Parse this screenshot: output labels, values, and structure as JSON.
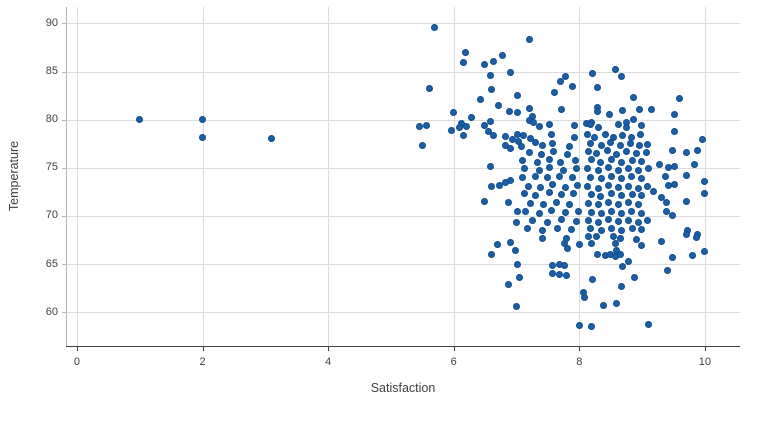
{
  "chart_data": {
    "type": "scatter",
    "title": "",
    "xlabel": "Satisfaction",
    "ylabel": "Temperature",
    "xlim": [
      -0.175,
      10.56
    ],
    "ylim": [
      56.5,
      91.7
    ],
    "x_ticks": [
      0,
      2,
      4,
      6,
      8,
      10
    ],
    "y_ticks": [
      60,
      65,
      70,
      75,
      80,
      85,
      90
    ],
    "grid": true,
    "legend": "none",
    "marker_color": "#1d5fa6",
    "marker_edge_color": "#0f4c8c",
    "gridline_color": "#dcdcdc",
    "x_axis_line_color": "#3f3f3f",
    "y_axis_line_color": "#b5b5b5",
    "tick_label_color": "#404040",
    "axis_title_color": "#404040",
    "background_color": "#ffffff",
    "points": [
      [
        1.0,
        80.0
      ],
      [
        2.0,
        80.0
      ],
      [
        2.0,
        78.1
      ],
      [
        3.1,
        78.0
      ],
      [
        5.69,
        89.6
      ],
      [
        6.18,
        87.0
      ],
      [
        6.77,
        86.7
      ],
      [
        6.16,
        85.9
      ],
      [
        6.49,
        85.7
      ],
      [
        6.63,
        86.0
      ],
      [
        6.9,
        84.9
      ],
      [
        6.58,
        84.6
      ],
      [
        5.61,
        83.2
      ],
      [
        6.6,
        83.1
      ],
      [
        6.42,
        82.1
      ],
      [
        7.01,
        82.5
      ],
      [
        6.71,
        81.5
      ],
      [
        5.99,
        80.7
      ],
      [
        6.89,
        80.9
      ],
      [
        7.02,
        80.7
      ],
      [
        6.28,
        80.2
      ],
      [
        6.13,
        79.6
      ],
      [
        6.58,
        79.8
      ],
      [
        7.2,
        88.3
      ],
      [
        7.7,
        84.0
      ],
      [
        7.78,
        84.5
      ],
      [
        7.9,
        83.4
      ],
      [
        7.6,
        82.8
      ],
      [
        8.21,
        84.8
      ],
      [
        8.29,
        83.3
      ],
      [
        8.57,
        85.2
      ],
      [
        8.67,
        84.5
      ],
      [
        8.87,
        82.3
      ],
      [
        7.2,
        81.2
      ],
      [
        7.71,
        81.1
      ],
      [
        7.25,
        80.3
      ],
      [
        8.29,
        81.3
      ],
      [
        8.29,
        80.8
      ],
      [
        8.48,
        80.5
      ],
      [
        8.69,
        81.0
      ],
      [
        8.96,
        81.1
      ],
      [
        8.87,
        80.0
      ],
      [
        7.21,
        79.9
      ],
      [
        7.27,
        79.7
      ],
      [
        8.11,
        79.6
      ],
      [
        8.19,
        79.7
      ],
      [
        8.76,
        79.7
      ],
      [
        9.59,
        82.2
      ],
      [
        9.51,
        80.5
      ],
      [
        9.15,
        81.1
      ],
      [
        5.45,
        79.3
      ],
      [
        5.56,
        79.4
      ],
      [
        5.97,
        78.9
      ],
      [
        6.1,
        79.2
      ],
      [
        6.15,
        78.4
      ],
      [
        6.2,
        79.3
      ],
      [
        6.49,
        79.35
      ],
      [
        6.55,
        78.75
      ],
      [
        6.63,
        78.4
      ],
      [
        6.82,
        78.3
      ],
      [
        6.94,
        77.95
      ],
      [
        6.83,
        77.3
      ],
      [
        6.91,
        77.05
      ],
      [
        7.02,
        78.5
      ],
      [
        7.04,
        77.7
      ],
      [
        5.5,
        77.3
      ],
      [
        6.59,
        75.1
      ],
      [
        6.61,
        73.05
      ],
      [
        6.73,
        73.15
      ],
      [
        6.82,
        73.5
      ],
      [
        6.9,
        73.65
      ],
      [
        6.49,
        71.5
      ],
      [
        6.88,
        71.4
      ],
      [
        7.02,
        70.5
      ],
      [
        7.0,
        69.35
      ],
      [
        9.51,
        78.75
      ],
      [
        9.97,
        77.9
      ],
      [
        9.49,
        76.85
      ],
      [
        9.7,
        76.55
      ],
      [
        9.89,
        76.85
      ],
      [
        9.28,
        75.3
      ],
      [
        9.42,
        75.0
      ],
      [
        9.52,
        75.1
      ],
      [
        9.84,
        75.3
      ],
      [
        9.38,
        74.15
      ],
      [
        9.71,
        74.25
      ],
      [
        9.42,
        73.2
      ],
      [
        9.52,
        73.3
      ],
      [
        9.99,
        73.55
      ],
      [
        9.19,
        72.5
      ],
      [
        9.99,
        72.35
      ],
      [
        9.31,
        71.9
      ],
      [
        9.39,
        71.4
      ],
      [
        9.7,
        71.5
      ],
      [
        9.39,
        70.5
      ],
      [
        9.49,
        70.0
      ],
      [
        9.72,
        68.45
      ],
      [
        9.89,
        68.1
      ],
      [
        6.7,
        67.0
      ],
      [
        6.9,
        67.25
      ],
      [
        6.6,
        66.0
      ],
      [
        6.99,
        66.45
      ],
      [
        7.02,
        65.0
      ],
      [
        6.88,
        62.9
      ],
      [
        7.0,
        60.6
      ],
      [
        7.42,
        67.7
      ],
      [
        7.77,
        67.1
      ],
      [
        7.8,
        67.7
      ],
      [
        7.82,
        66.6
      ],
      [
        8.01,
        67.0
      ],
      [
        8.14,
        67.85
      ],
      [
        8.19,
        67.15
      ],
      [
        8.27,
        67.9
      ],
      [
        8.54,
        67.85
      ],
      [
        8.57,
        67.15
      ],
      [
        8.6,
        66.45
      ],
      [
        8.65,
        67.7
      ],
      [
        8.91,
        67.6
      ],
      [
        8.99,
        66.9
      ],
      [
        8.29,
        65.95
      ],
      [
        8.41,
        65.85
      ],
      [
        8.49,
        66.0
      ],
      [
        8.57,
        65.75
      ],
      [
        8.65,
        65.95
      ],
      [
        8.78,
        65.25
      ],
      [
        8.69,
        64.75
      ],
      [
        7.57,
        64.9
      ],
      [
        7.68,
        65.0
      ],
      [
        7.77,
        64.9
      ],
      [
        7.58,
        64.05
      ],
      [
        7.69,
        63.95
      ],
      [
        7.79,
        63.8
      ],
      [
        7.05,
        63.6
      ],
      [
        8.88,
        63.6
      ],
      [
        8.21,
        63.45
      ],
      [
        8.06,
        62.05
      ],
      [
        8.09,
        61.5
      ],
      [
        8.38,
        60.75
      ],
      [
        8.6,
        60.95
      ],
      [
        8.67,
        62.65
      ],
      [
        8.01,
        58.6
      ],
      [
        8.19,
        58.5
      ],
      [
        9.1,
        58.7
      ],
      [
        9.31,
        67.4
      ],
      [
        9.7,
        68.05
      ],
      [
        9.87,
        67.75
      ],
      [
        9.49,
        65.65
      ],
      [
        9.8,
        65.85
      ],
      [
        9.99,
        66.35
      ],
      [
        9.4,
        64.3
      ],
      [
        7.36,
        79.3
      ],
      [
        7.52,
        79.5
      ],
      [
        7.92,
        79.4
      ],
      [
        7.11,
        78.35
      ],
      [
        7.22,
        78.0
      ],
      [
        7.56,
        78.45
      ],
      [
        7.93,
        78.2
      ],
      [
        7.08,
        77.25
      ],
      [
        7.3,
        77.6
      ],
      [
        7.41,
        77.3
      ],
      [
        7.57,
        77.5
      ],
      [
        7.85,
        77.25
      ],
      [
        7.2,
        76.6
      ],
      [
        7.4,
        76.35
      ],
      [
        7.59,
        76.65
      ],
      [
        7.82,
        76.4
      ],
      [
        7.09,
        75.8
      ],
      [
        7.33,
        75.6
      ],
      [
        7.52,
        75.85
      ],
      [
        7.7,
        75.6
      ],
      [
        7.94,
        75.8
      ],
      [
        7.13,
        74.9
      ],
      [
        7.36,
        74.7
      ],
      [
        7.53,
        75.0
      ],
      [
        7.75,
        74.75
      ],
      [
        7.96,
        74.9
      ],
      [
        7.1,
        73.95
      ],
      [
        7.3,
        74.1
      ],
      [
        7.5,
        73.95
      ],
      [
        7.68,
        74.15
      ],
      [
        7.89,
        73.95
      ],
      [
        7.19,
        73.1
      ],
      [
        7.38,
        73.0
      ],
      [
        7.57,
        73.25
      ],
      [
        7.78,
        73.0
      ],
      [
        7.97,
        73.2
      ],
      [
        7.12,
        72.3
      ],
      [
        7.31,
        72.15
      ],
      [
        7.52,
        72.4
      ],
      [
        7.72,
        72.2
      ],
      [
        7.91,
        72.35
      ],
      [
        7.22,
        71.3
      ],
      [
        7.43,
        71.15
      ],
      [
        7.64,
        71.35
      ],
      [
        7.85,
        71.2
      ],
      [
        7.14,
        70.45
      ],
      [
        7.36,
        70.3
      ],
      [
        7.56,
        70.55
      ],
      [
        7.78,
        70.35
      ],
      [
        7.98,
        70.5
      ],
      [
        7.25,
        69.5
      ],
      [
        7.49,
        69.35
      ],
      [
        7.72,
        69.6
      ],
      [
        7.96,
        69.4
      ],
      [
        7.17,
        68.65
      ],
      [
        7.41,
        68.5
      ],
      [
        7.65,
        68.7
      ],
      [
        7.88,
        68.55
      ],
      [
        8.18,
        79.45
      ],
      [
        8.31,
        79.15
      ],
      [
        8.62,
        79.5
      ],
      [
        8.76,
        79.2
      ],
      [
        8.99,
        79.35
      ],
      [
        8.13,
        78.45
      ],
      [
        8.25,
        78.2
      ],
      [
        8.41,
        78.5
      ],
      [
        8.55,
        78.2
      ],
      [
        8.69,
        78.4
      ],
      [
        8.83,
        78.1
      ],
      [
        8.98,
        78.5
      ],
      [
        8.18,
        77.55
      ],
      [
        8.35,
        77.35
      ],
      [
        8.5,
        77.6
      ],
      [
        8.66,
        77.3
      ],
      [
        8.81,
        77.55
      ],
      [
        8.96,
        77.3
      ],
      [
        9.09,
        77.45
      ],
      [
        8.14,
        76.7
      ],
      [
        8.28,
        76.5
      ],
      [
        8.45,
        76.75
      ],
      [
        8.6,
        76.4
      ],
      [
        8.76,
        76.7
      ],
      [
        8.91,
        76.45
      ],
      [
        9.07,
        76.6
      ],
      [
        8.19,
        75.85
      ],
      [
        8.34,
        75.6
      ],
      [
        8.51,
        75.85
      ],
      [
        8.67,
        75.6
      ],
      [
        8.84,
        75.8
      ],
      [
        8.99,
        75.65
      ],
      [
        8.13,
        74.9
      ],
      [
        8.3,
        74.75
      ],
      [
        8.46,
        75.0
      ],
      [
        8.62,
        74.75
      ],
      [
        8.79,
        74.95
      ],
      [
        8.94,
        74.7
      ],
      [
        9.1,
        74.95
      ],
      [
        8.18,
        74.0
      ],
      [
        8.35,
        73.85
      ],
      [
        8.51,
        74.1
      ],
      [
        8.68,
        73.85
      ],
      [
        8.83,
        74.05
      ],
      [
        8.99,
        73.85
      ],
      [
        8.13,
        73.05
      ],
      [
        8.3,
        72.9
      ],
      [
        8.46,
        73.15
      ],
      [
        8.63,
        72.95
      ],
      [
        8.78,
        73.1
      ],
      [
        8.95,
        72.9
      ],
      [
        9.09,
        73.05
      ],
      [
        8.19,
        72.2
      ],
      [
        8.34,
        72.05
      ],
      [
        8.52,
        72.3
      ],
      [
        8.67,
        72.1
      ],
      [
        8.84,
        72.25
      ],
      [
        8.99,
        72.1
      ],
      [
        8.14,
        71.3
      ],
      [
        8.3,
        71.15
      ],
      [
        8.47,
        71.4
      ],
      [
        8.62,
        71.2
      ],
      [
        8.79,
        71.35
      ],
      [
        8.94,
        71.15
      ],
      [
        8.19,
        70.4
      ],
      [
        8.35,
        70.25
      ],
      [
        8.52,
        70.45
      ],
      [
        8.68,
        70.25
      ],
      [
        8.83,
        70.45
      ],
      [
        8.99,
        70.3
      ],
      [
        8.14,
        69.5
      ],
      [
        8.3,
        69.35
      ],
      [
        8.47,
        69.6
      ],
      [
        8.62,
        69.4
      ],
      [
        8.79,
        69.55
      ],
      [
        8.95,
        69.35
      ],
      [
        9.09,
        69.5
      ],
      [
        8.18,
        68.65
      ],
      [
        8.35,
        68.5
      ],
      [
        8.52,
        68.7
      ],
      [
        8.67,
        68.5
      ],
      [
        8.84,
        68.7
      ],
      [
        8.99,
        68.55
      ]
    ]
  }
}
